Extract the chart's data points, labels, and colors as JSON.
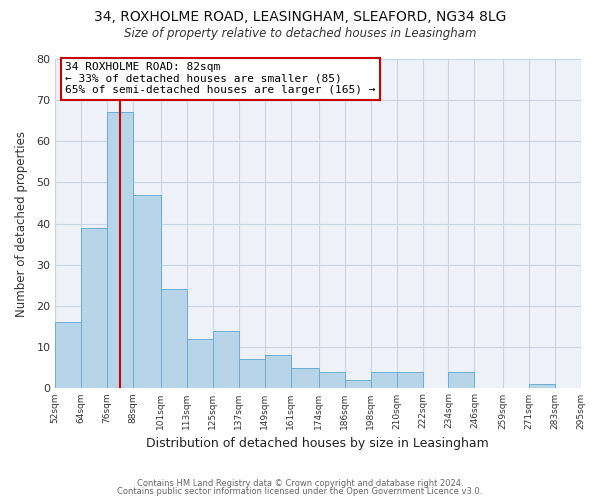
{
  "title_line1": "34, ROXHOLME ROAD, LEASINGHAM, SLEAFORD, NG34 8LG",
  "title_line2": "Size of property relative to detached houses in Leasingham",
  "xlabel": "Distribution of detached houses by size in Leasingham",
  "ylabel": "Number of detached properties",
  "bar_edges": [
    52,
    64,
    76,
    88,
    101,
    113,
    125,
    137,
    149,
    161,
    174,
    186,
    198,
    210,
    222,
    234,
    246,
    259,
    271,
    283,
    295
  ],
  "bar_heights": [
    16,
    39,
    67,
    47,
    24,
    12,
    14,
    7,
    8,
    5,
    4,
    2,
    4,
    4,
    0,
    4,
    0,
    0,
    1,
    0
  ],
  "bar_color": "#b8d4e8",
  "bar_edgecolor": "#6aadd5",
  "vline_x": 82,
  "vline_color": "#cc0000",
  "annotation_line1": "34 ROXHOLME ROAD: 82sqm",
  "annotation_line2": "← 33% of detached houses are smaller (85)",
  "annotation_line3": "65% of semi-detached houses are larger (165) →",
  "annotation_box_facecolor": "white",
  "annotation_box_edgecolor": "#cc0000",
  "ylim": [
    0,
    80
  ],
  "yticks": [
    0,
    10,
    20,
    30,
    40,
    50,
    60,
    70,
    80
  ],
  "xlim": [
    52,
    295
  ],
  "tick_labels": [
    "52sqm",
    "64sqm",
    "76sqm",
    "88sqm",
    "101sqm",
    "113sqm",
    "125sqm",
    "137sqm",
    "149sqm",
    "161sqm",
    "174sqm",
    "186sqm",
    "198sqm",
    "210sqm",
    "222sqm",
    "234sqm",
    "246sqm",
    "259sqm",
    "271sqm",
    "283sqm",
    "295sqm"
  ],
  "tick_positions": [
    52,
    64,
    76,
    88,
    101,
    113,
    125,
    137,
    149,
    161,
    174,
    186,
    198,
    210,
    222,
    234,
    246,
    259,
    271,
    283,
    295
  ],
  "footer_line1": "Contains HM Land Registry data © Crown copyright and database right 2024.",
  "footer_line2": "Contains public sector information licensed under the Open Government Licence v3.0.",
  "bg_color": "#ffffff",
  "plot_bg_color": "#eef2f8",
  "grid_color": "#c8d4e4"
}
